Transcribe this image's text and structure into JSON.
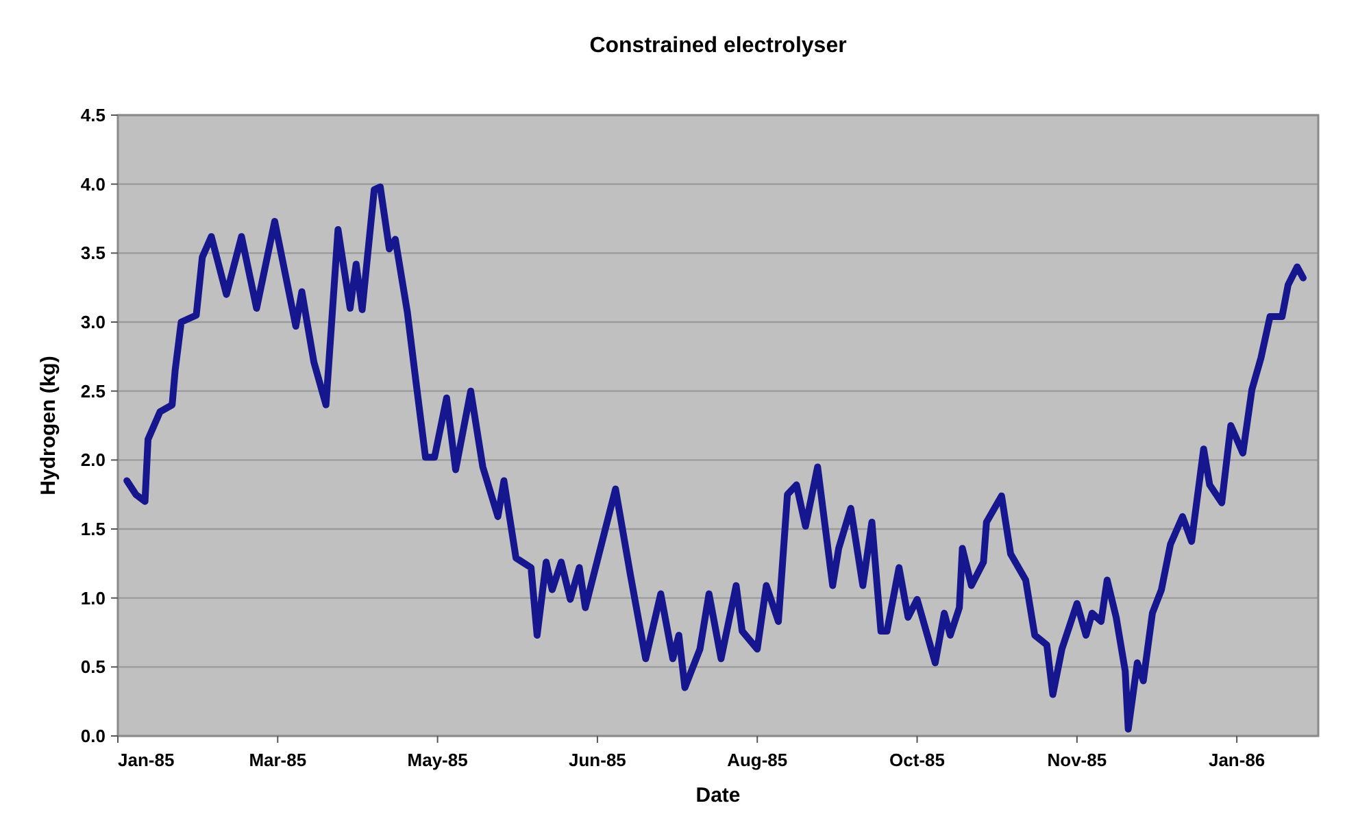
{
  "chart_data": {
    "type": "line",
    "title": "Constrained electrolyser",
    "xlabel": "Date",
    "ylabel": "Hydrogen (kg)",
    "x": [
      "1985-01-19",
      "1985-01-22",
      "1985-01-25",
      "1985-01-26",
      "1985-01-30",
      "1985-02-03",
      "1985-02-04",
      "1985-02-06",
      "1985-02-11",
      "1985-02-13",
      "1985-02-16",
      "1985-02-21",
      "1985-02-26",
      "1985-03-03",
      "1985-03-09",
      "1985-03-16",
      "1985-03-18",
      "1985-03-22",
      "1985-03-26",
      "1985-03-30",
      "1985-04-03",
      "1985-04-05",
      "1985-04-07",
      "1985-04-11",
      "1985-04-13",
      "1985-04-16",
      "1985-04-18",
      "1985-04-22",
      "1985-04-25",
      "1985-04-28",
      "1985-05-01",
      "1985-05-05",
      "1985-05-08",
      "1985-05-13",
      "1985-05-17",
      "1985-05-22",
      "1985-05-24",
      "1985-05-28",
      "1985-06-02",
      "1985-06-04",
      "1985-06-07",
      "1985-06-09",
      "1985-06-12",
      "1985-06-15",
      "1985-06-18",
      "1985-06-20",
      "1985-06-25",
      "1985-06-30",
      "1985-07-05",
      "1985-07-10",
      "1985-07-15",
      "1985-07-19",
      "1985-07-21",
      "1985-07-23",
      "1985-07-28",
      "1985-07-31",
      "1985-08-04",
      "1985-08-09",
      "1985-08-11",
      "1985-08-16",
      "1985-08-19",
      "1985-08-23",
      "1985-08-26",
      "1985-08-29",
      "1985-09-01",
      "1985-09-05",
      "1985-09-10",
      "1985-09-12",
      "1985-09-16",
      "1985-09-20",
      "1985-09-23",
      "1985-09-26",
      "1985-09-28",
      "1985-10-02",
      "1985-10-05",
      "1985-10-08",
      "1985-10-14",
      "1985-10-17",
      "1985-10-19",
      "1985-10-22",
      "1985-10-23",
      "1985-10-26",
      "1985-10-30",
      "1985-10-31",
      "1985-11-05",
      "1985-11-08",
      "1985-11-13",
      "1985-11-16",
      "1985-11-20",
      "1985-11-22",
      "1985-11-25",
      "1985-11-30",
      "1985-12-03",
      "1985-12-05",
      "1985-12-08",
      "1985-12-10",
      "1985-12-13",
      "1985-12-16",
      "1985-12-17",
      "1985-12-20",
      "1985-12-22",
      "1985-12-25",
      "1985-12-28",
      "1985-12-31",
      "1986-01-04",
      "1986-01-07",
      "1986-01-11",
      "1986-01-13",
      "1986-01-17",
      "1986-01-20",
      "1986-01-24",
      "1986-01-27",
      "1986-01-30",
      "1986-02-02",
      "1986-02-06",
      "1986-02-08",
      "1986-02-11",
      "1986-02-13"
    ],
    "series": [
      {
        "color": "#16168f",
        "values": [
          1.85,
          1.75,
          1.7,
          2.15,
          2.35,
          2.4,
          2.65,
          3.0,
          3.05,
          3.47,
          3.62,
          3.2,
          3.62,
          3.1,
          3.73,
          2.97,
          3.22,
          2.71,
          2.4,
          3.67,
          3.1,
          3.42,
          3.09,
          3.96,
          3.98,
          3.53,
          3.6,
          3.07,
          2.54,
          2.02,
          2.02,
          2.45,
          1.93,
          2.5,
          1.95,
          1.59,
          1.85,
          1.29,
          1.22,
          0.73,
          1.26,
          1.06,
          1.26,
          0.99,
          1.22,
          0.93,
          1.36,
          1.79,
          1.16,
          0.56,
          1.03,
          0.56,
          0.73,
          0.35,
          0.63,
          1.03,
          0.56,
          1.09,
          0.76,
          0.63,
          1.09,
          0.83,
          1.75,
          1.82,
          1.52,
          1.95,
          1.09,
          1.36,
          1.65,
          1.09,
          1.55,
          0.76,
          0.76,
          1.22,
          0.86,
          0.99,
          0.53,
          0.89,
          0.73,
          0.93,
          1.36,
          1.09,
          1.26,
          1.55,
          1.74,
          1.32,
          1.13,
          0.73,
          0.66,
          0.3,
          0.63,
          0.96,
          0.73,
          0.89,
          0.83,
          1.13,
          0.86,
          0.47,
          0.05,
          0.53,
          0.4,
          0.89,
          1.06,
          1.39,
          1.59,
          1.41,
          2.08,
          1.82,
          1.69,
          2.25,
          2.05,
          2.51,
          2.74,
          3.04,
          3.04,
          3.27,
          3.4,
          3.32
        ]
      }
    ],
    "xlim": [
      "1985-01-16",
      "1986-02-18"
    ],
    "xticks": [
      {
        "value": "1985-01-16",
        "label": "Jan-85"
      },
      {
        "value": "1985-03-10",
        "label": "Mar-85"
      },
      {
        "value": "1985-05-02",
        "label": "May-85"
      },
      {
        "value": "1985-06-24",
        "label": "Jun-85"
      },
      {
        "value": "1985-08-16",
        "label": "Aug-85"
      },
      {
        "value": "1985-10-08",
        "label": "Oct-85"
      },
      {
        "value": "1985-11-30",
        "label": "Nov-85"
      },
      {
        "value": "1986-01-22",
        "label": "Jan-86"
      }
    ],
    "ylim": [
      0,
      4.5
    ],
    "yticks": [
      {
        "value": 0,
        "label": "0.0"
      },
      {
        "value": 0.5,
        "label": "0.5"
      },
      {
        "value": 1,
        "label": "1.0"
      },
      {
        "value": 1.5,
        "label": "1.5"
      },
      {
        "value": 2,
        "label": "2.0"
      },
      {
        "value": 2.5,
        "label": "2.5"
      },
      {
        "value": 3,
        "label": "3.0"
      },
      {
        "value": 3.5,
        "label": "3.5"
      },
      {
        "value": 4,
        "label": "4.0"
      },
      {
        "value": 4.5,
        "label": "4.5"
      }
    ],
    "grid": "y",
    "marker": "none",
    "line_style": "solid"
  }
}
